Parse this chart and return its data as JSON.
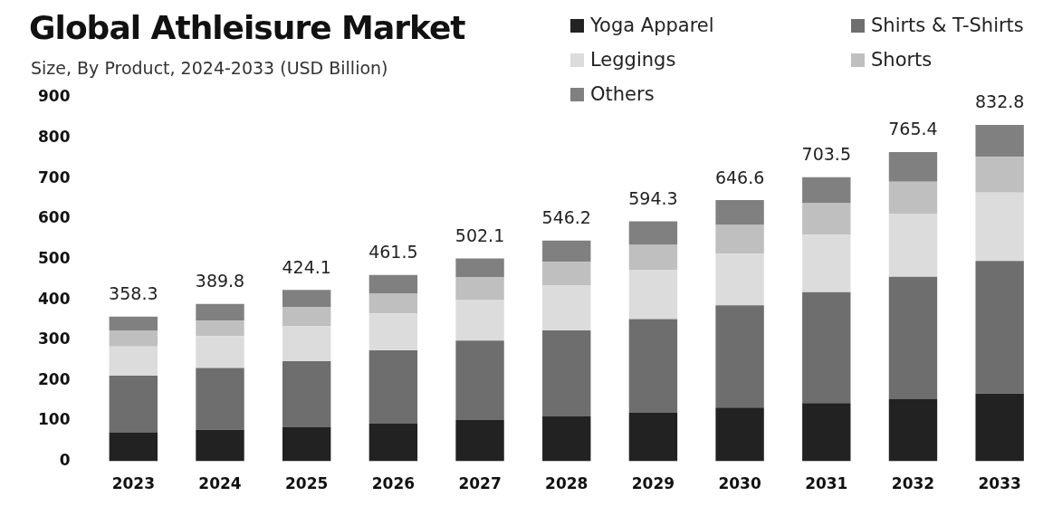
{
  "chart_data": {
    "type": "bar",
    "title": "Global Athleisure Market",
    "subtitle": "Size, By Product, 2024-2033 (USD Billion)",
    "categories": [
      "2023",
      "2024",
      "2025",
      "2026",
      "2027",
      "2028",
      "2029",
      "2030",
      "2031",
      "2032",
      "2033"
    ],
    "stacked": true,
    "grid": false,
    "legend": "top right",
    "ylim": [
      0,
      900
    ],
    "yticks": [
      0,
      100,
      200,
      300,
      400,
      500,
      600,
      700,
      800,
      900
    ],
    "series": [
      {
        "name": "Yoga Apparel",
        "color": "#222222",
        "values": [
          72,
          78,
          84,
          93,
          102,
          111,
          120,
          133,
          144,
          155,
          168
        ]
      },
      {
        "name": "Shirts & T-Shirts",
        "color": "#6e6e6e",
        "values": [
          140,
          153,
          164,
          182,
          197,
          213,
          232,
          253,
          275,
          302,
          328
        ]
      },
      {
        "name": "Leggings",
        "color": "#dcdcdc",
        "values": [
          72,
          79,
          87,
          91,
          100,
          111,
          122,
          128,
          142,
          155,
          169
        ]
      },
      {
        "name": "Shorts",
        "color": "#bfbfbf",
        "values": [
          40,
          38,
          46,
          49,
          56,
          59,
          63,
          71,
          78,
          80,
          89
        ]
      },
      {
        "name": "Others",
        "color": "#808080",
        "values": [
          34.3,
          41.8,
          43.1,
          46.5,
          47.1,
          52.2,
          57.3,
          61.6,
          64.5,
          73.4,
          78.8
        ]
      }
    ],
    "totals": [
      "358.3",
      "389.8",
      "424.1",
      "461.5",
      "502.1",
      "546.2",
      "594.3",
      "646.6",
      "703.5",
      "765.4",
      "832.8"
    ]
  }
}
